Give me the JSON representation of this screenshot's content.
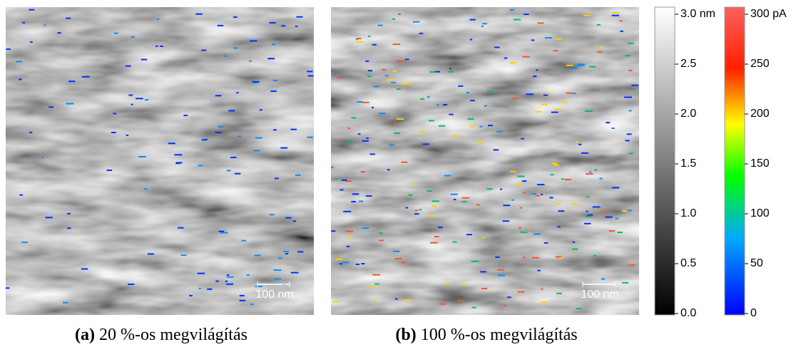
{
  "panels": [
    {
      "scale_bar": "100 nm",
      "caption": {
        "tag": "(a)",
        "text": "20 %-os megvilágítás"
      }
    },
    {
      "scale_bar": "100 nm",
      "caption": {
        "tag": "(b)",
        "text": "100 %-os megvilágítás"
      }
    }
  ],
  "colorbars": [
    {
      "range": [
        0,
        3
      ],
      "ticks": [
        {
          "value": 0,
          "label": "0.0"
        },
        {
          "value": 0.5,
          "label": "0.5"
        },
        {
          "value": 1,
          "label": "1.0"
        },
        {
          "value": 1.5,
          "label": "1.5"
        },
        {
          "value": 2,
          "label": "2.0"
        },
        {
          "value": 2.5,
          "label": "2.5"
        },
        {
          "value": 3,
          "label": "3.0 nm"
        }
      ]
    },
    {
      "range": [
        0,
        300
      ],
      "ticks": [
        0,
        50,
        100,
        150,
        200,
        250,
        {
          "value": 300,
          "label": "300 pA"
        }
      ]
    }
  ]
}
